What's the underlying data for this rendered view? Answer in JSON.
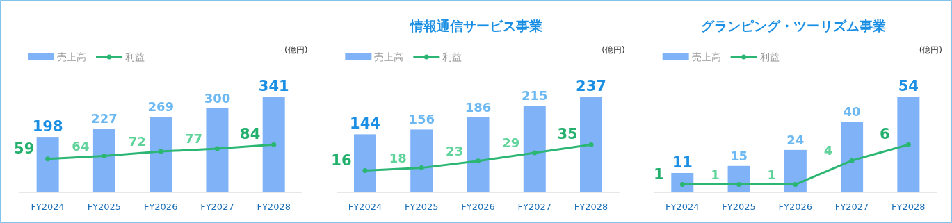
{
  "chart_data": [
    {
      "type": "bar",
      "annotations": [
        "(億円)"
      ],
      "categories": [
        "FY2024",
        "FY2025",
        "FY2026",
        "FY2027",
        "FY2028"
      ],
      "legend": "top left",
      "marker": "circle",
      "data_labels": true,
      "series": [
        {
          "name": "売上高",
          "color": "#7fb2f7",
          "values": [
            198,
            227,
            269,
            300,
            341
          ]
        },
        {
          "name": "利益",
          "type": "line",
          "axis": "y2",
          "color": "#2bb673",
          "values": [
            59,
            64,
            72,
            77,
            84
          ]
        }
      ]
    },
    {
      "type": "bar",
      "title": "情報通信サービス事業",
      "annotations": [
        "(億円)"
      ],
      "categories": [
        "FY2024",
        "FY2025",
        "FY2026",
        "FY2027",
        "FY2028"
      ],
      "legend": "top left",
      "marker": "circle",
      "data_labels": true,
      "series": [
        {
          "name": "売上高",
          "color": "#7fb2f7",
          "values": [
            144,
            156,
            186,
            215,
            237
          ]
        },
        {
          "name": "利益",
          "type": "line",
          "axis": "y2",
          "color": "#2bb673",
          "values": [
            16,
            18,
            23,
            29,
            35
          ]
        }
      ]
    },
    {
      "type": "bar",
      "title": "グランピング・ツーリズム事業",
      "annotations": [
        "(億円)"
      ],
      "categories": [
        "FY2024",
        "FY2025",
        "FY2026",
        "FY2027",
        "FY2028"
      ],
      "legend": "top left",
      "marker": "circle",
      "data_labels": true,
      "series": [
        {
          "name": "売上高",
          "color": "#7fb2f7",
          "values": [
            11,
            15,
            24,
            40,
            54
          ]
        },
        {
          "name": "利益",
          "type": "line",
          "axis": "y2",
          "color": "#2bb673",
          "values": [
            1,
            1,
            1,
            4,
            6
          ]
        }
      ]
    }
  ]
}
